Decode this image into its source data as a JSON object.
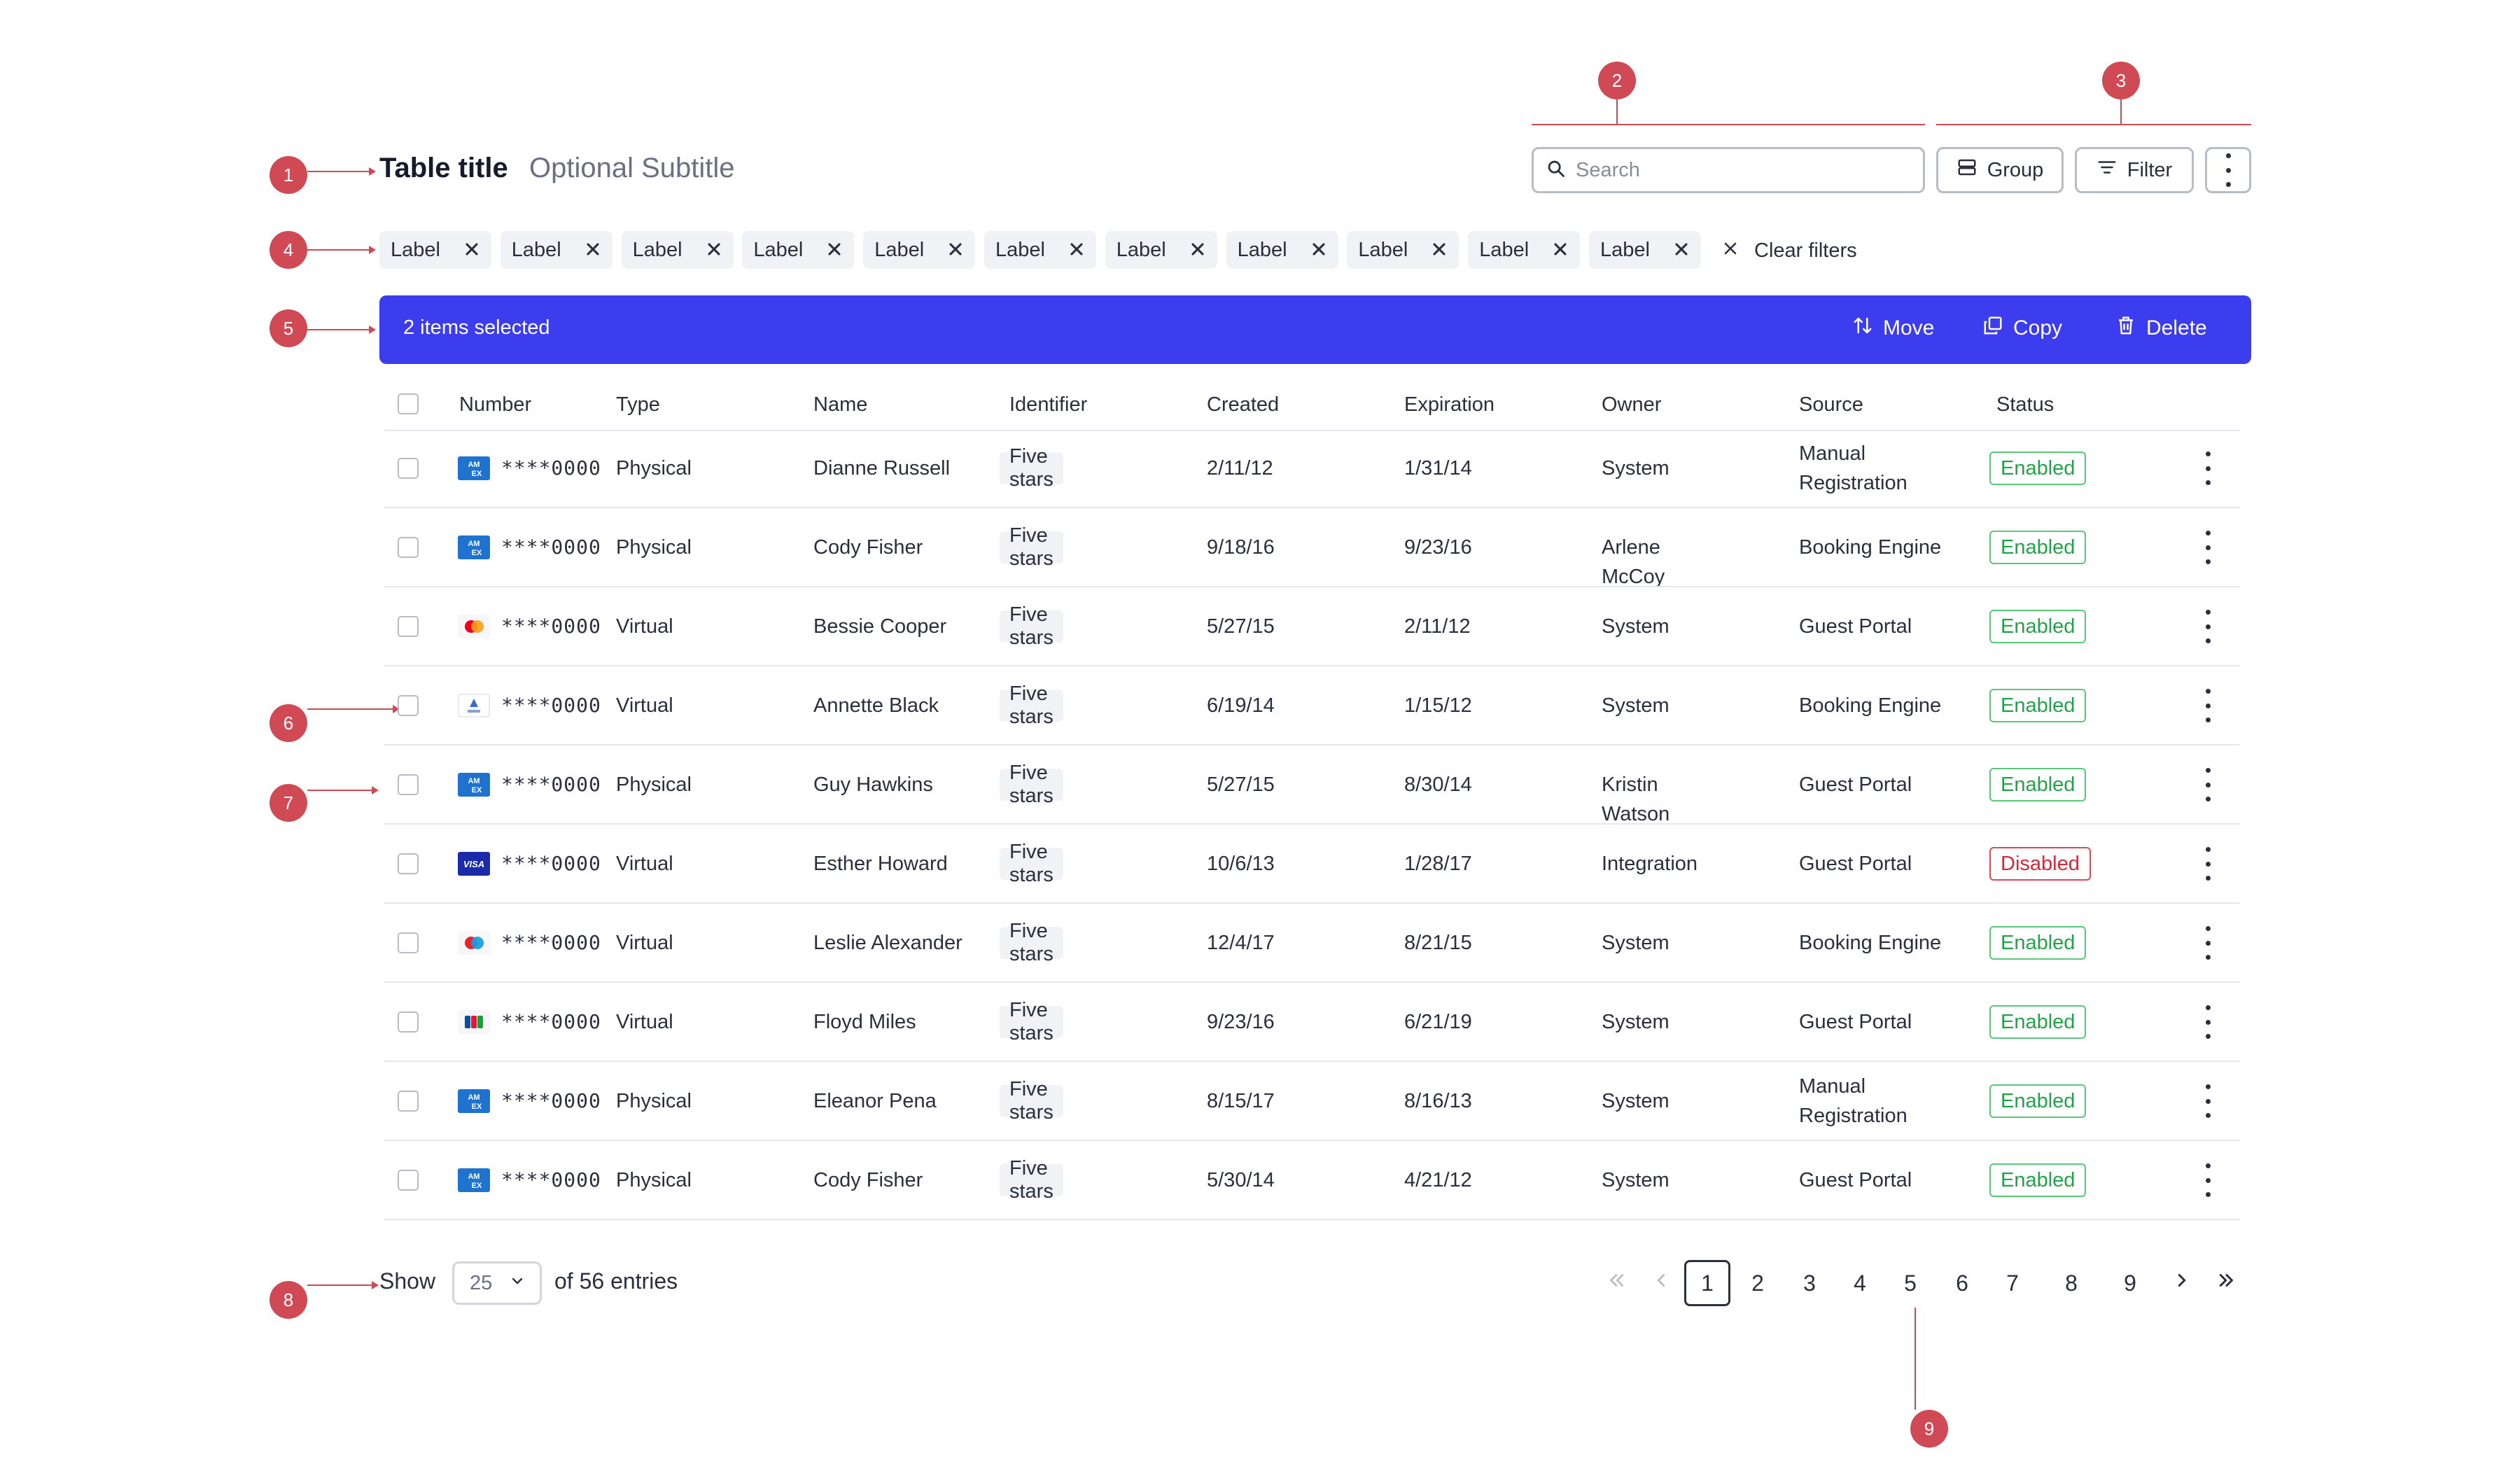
{
  "header": {
    "title": "Table title",
    "subtitle": "Optional Subtitle",
    "search_placeholder": "Search",
    "group_label": "Group",
    "filter_label": "Filter"
  },
  "annotations": [
    "1",
    "2",
    "3",
    "4",
    "5",
    "6",
    "7",
    "8",
    "9"
  ],
  "filters": {
    "chips": [
      "Label",
      "Label",
      "Label",
      "Label",
      "Label",
      "Label",
      "Label",
      "Label",
      "Label",
      "Label",
      "Label"
    ],
    "clear_label": "Clear filters"
  },
  "selection": {
    "count_text": "2 items selected",
    "move_label": "Move",
    "copy_label": "Copy",
    "delete_label": "Delete"
  },
  "table": {
    "columns": [
      "Number",
      "Type",
      "Name",
      "Identifier",
      "Created",
      "Expiration",
      "Owner",
      "Source",
      "Status"
    ],
    "rows": [
      {
        "card": "amex",
        "number": "****0000",
        "type": "Physical",
        "name": "Dianne Russell",
        "identifier": "Five stars",
        "created": "2/11/12",
        "expiration": "1/31/14",
        "owner": "System",
        "source": "Manual Registration",
        "status": "Enabled"
      },
      {
        "card": "amex",
        "number": "****0000",
        "type": "Physical",
        "name": "Cody Fisher",
        "identifier": "Five stars",
        "created": "9/18/16",
        "expiration": "9/23/16",
        "owner": "Arlene McCoy",
        "source": "Booking Engine",
        "status": "Enabled"
      },
      {
        "card": "mastercard",
        "number": "****0000",
        "type": "Virtual",
        "name": "Bessie Cooper",
        "identifier": "Five stars",
        "created": "5/27/15",
        "expiration": "2/11/12",
        "owner": "System",
        "source": "Guest Portal",
        "status": "Enabled"
      },
      {
        "card": "generic",
        "number": "****0000",
        "type": "Virtual",
        "name": "Annette Black",
        "identifier": "Five stars",
        "created": "6/19/14",
        "expiration": "1/15/12",
        "owner": "System",
        "source": "Booking Engine",
        "status": "Enabled"
      },
      {
        "card": "amex",
        "number": "****0000",
        "type": "Physical",
        "name": "Guy Hawkins",
        "identifier": "Five stars",
        "created": "5/27/15",
        "expiration": "8/30/14",
        "owner": "Kristin Watson",
        "source": "Guest Portal",
        "status": "Enabled"
      },
      {
        "card": "visa",
        "number": "****0000",
        "type": "Virtual",
        "name": "Esther Howard",
        "identifier": "Five stars",
        "created": "10/6/13",
        "expiration": "1/28/17",
        "owner": "Integration",
        "source": "Guest Portal",
        "status": "Disabled"
      },
      {
        "card": "maestro",
        "number": "****0000",
        "type": "Virtual",
        "name": "Leslie Alexander",
        "identifier": "Five stars",
        "created": "12/4/17",
        "expiration": "8/21/15",
        "owner": "System",
        "source": "Booking Engine",
        "status": "Enabled"
      },
      {
        "card": "jcb",
        "number": "****0000",
        "type": "Virtual",
        "name": "Floyd Miles",
        "identifier": "Five stars",
        "created": "9/23/16",
        "expiration": "6/21/19",
        "owner": "System",
        "source": "Guest Portal",
        "status": "Enabled"
      },
      {
        "card": "amex",
        "number": "****0000",
        "type": "Physical",
        "name": "Eleanor Pena",
        "identifier": "Five stars",
        "created": "8/15/17",
        "expiration": "8/16/13",
        "owner": "System",
        "source": "Manual Registration",
        "status": "Enabled"
      },
      {
        "card": "amex",
        "number": "****0000",
        "type": "Physical",
        "name": "Cody Fisher",
        "identifier": "Five stars",
        "created": "5/30/14",
        "expiration": "4/21/12",
        "owner": "System",
        "source": "Guest Portal",
        "status": "Enabled"
      }
    ]
  },
  "pagination": {
    "show_label": "Show",
    "page_size": "25",
    "entries_text": "of 56 entries",
    "pages": [
      "1",
      "2",
      "3",
      "4",
      "5",
      "6",
      "7",
      "8",
      "9"
    ],
    "current_page": "1"
  },
  "card_brand_text": {
    "amex": "AM EX",
    "visa": "VISA"
  },
  "colors": {
    "accent": "#3d3df0",
    "annotation": "#cf4a55",
    "enabled": "#22a34a",
    "disabled": "#d12b3b"
  }
}
